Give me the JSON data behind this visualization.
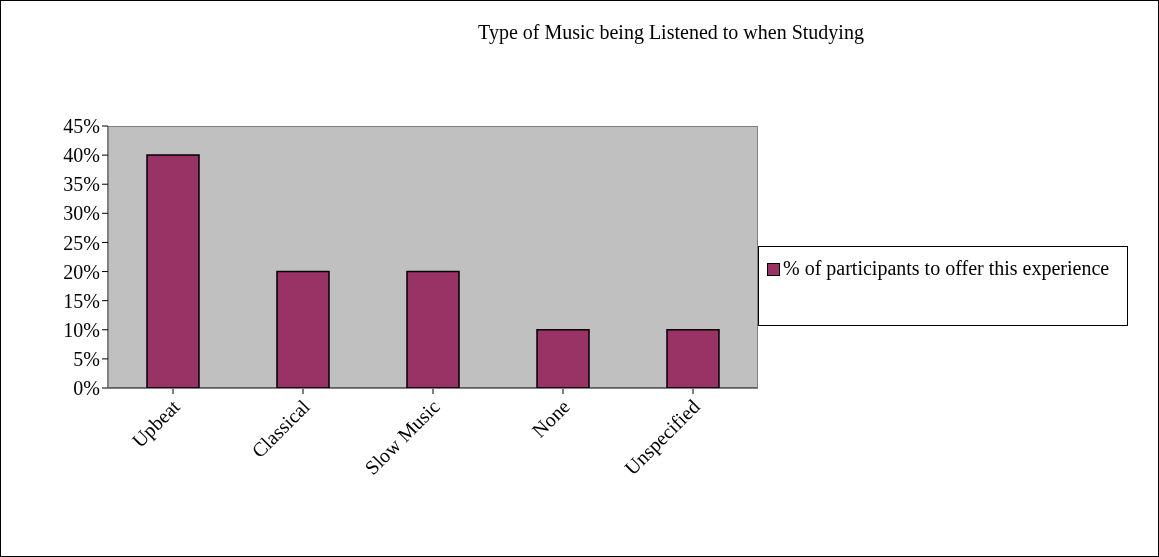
{
  "chart_data": {
    "type": "bar",
    "title": "Type of Music being Listened to when Studying",
    "categories": [
      "Upbeat",
      "Classical",
      "Slow Music",
      "None",
      "Unspecified"
    ],
    "series": [
      {
        "name": "% of participants to offer this experience",
        "color": "#993366",
        "values": [
          40,
          20,
          20,
          10,
          10
        ]
      }
    ],
    "ylim": [
      0,
      45
    ],
    "yticks": [
      {
        "value": 0,
        "label": "0%"
      },
      {
        "value": 5,
        "label": "5%"
      },
      {
        "value": 10,
        "label": "10%"
      },
      {
        "value": 15,
        "label": "15%"
      },
      {
        "value": 20,
        "label": "20%"
      },
      {
        "value": 25,
        "label": "25%"
      },
      {
        "value": 30,
        "label": "30%"
      },
      {
        "value": 35,
        "label": "35%"
      },
      {
        "value": 40,
        "label": "40%"
      },
      {
        "value": 45,
        "label": "45%"
      }
    ],
    "grid": false,
    "legend": "right"
  }
}
